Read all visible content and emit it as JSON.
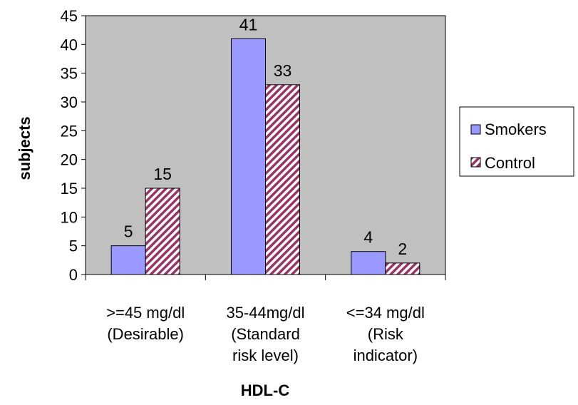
{
  "chart_data": {
    "type": "bar",
    "categories": [
      [
        ">=45 mg/dl",
        "(Desirable)"
      ],
      [
        "35-44mg/dl",
        "(Standard",
        "risk level)"
      ],
      [
        "<=34 mg/dl",
        "(Risk",
        "indicator)"
      ]
    ],
    "series": [
      {
        "name": "Smokers",
        "values": [
          5,
          41,
          4
        ],
        "color": "#9999ff",
        "pattern": "solid"
      },
      {
        "name": "Control",
        "values": [
          15,
          33,
          2
        ],
        "color": "#993366",
        "pattern": "diagonal-hatch"
      }
    ],
    "data_labels": [
      [
        "5",
        "41",
        "4"
      ],
      [
        "15",
        "33",
        "2"
      ]
    ],
    "xlabel": "HDL-C",
    "ylabel": "subjects",
    "ylim": [
      0,
      45
    ],
    "yticks": [
      "0",
      "5",
      "10",
      "15",
      "20",
      "25",
      "30",
      "35",
      "40",
      "45"
    ],
    "plot_background": "#c0c0c0",
    "grid": false,
    "legend_position": "right"
  }
}
